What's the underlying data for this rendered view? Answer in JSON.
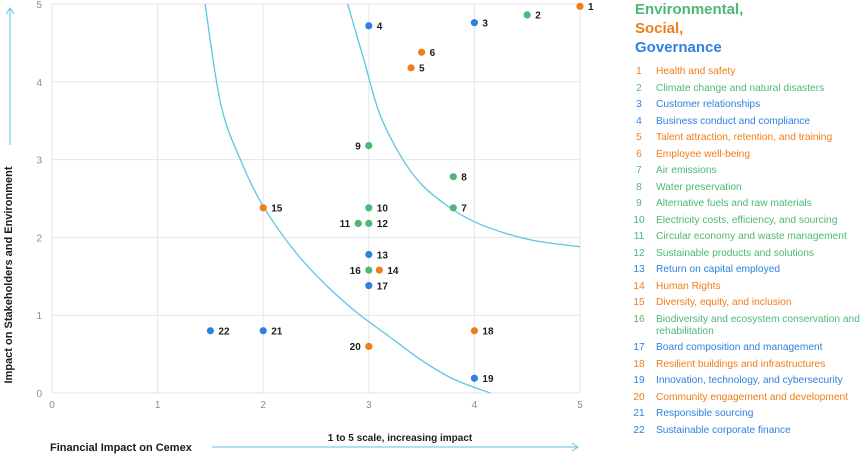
{
  "colors": {
    "environmental": "#4cb877",
    "social": "#f07d19",
    "governance": "#2f80e0",
    "curve": "#5cc6e6",
    "grid": "#e4e6e8",
    "axis": "#5cc6e6"
  },
  "legend": {
    "categories": [
      {
        "label": "Environmental,",
        "pillar": "environmental"
      },
      {
        "label": "Social,",
        "pillar": "social"
      },
      {
        "label": "Governance",
        "pillar": "governance"
      }
    ],
    "items": [
      {
        "num": "1",
        "label": "Health and safety",
        "pillar": "social"
      },
      {
        "num": "2",
        "label": "Climate change and natural disasters",
        "pillar": "environmental"
      },
      {
        "num": "3",
        "label": "Customer relationships",
        "pillar": "governance"
      },
      {
        "num": "4",
        "label": "Business conduct and compliance",
        "pillar": "governance"
      },
      {
        "num": "5",
        "label": "Talent attraction, retention, and training",
        "pillar": "social"
      },
      {
        "num": "6",
        "label": "Employee well-being",
        "pillar": "social"
      },
      {
        "num": "7",
        "label": "Air emissions",
        "pillar": "environmental"
      },
      {
        "num": "8",
        "label": "Water preservation",
        "pillar": "environmental"
      },
      {
        "num": "9",
        "label": "Alternative fuels and raw materials",
        "pillar": "environmental"
      },
      {
        "num": "10",
        "label": "Electricity costs, efficiency, and sourcing",
        "pillar": "environmental"
      },
      {
        "num": "11",
        "label": "Circular economy and waste management",
        "pillar": "environmental"
      },
      {
        "num": "12",
        "label": "Sustainable products and solutions",
        "pillar": "environmental"
      },
      {
        "num": "13",
        "label": "Return on capital employed",
        "pillar": "governance"
      },
      {
        "num": "14",
        "label": "Human Rights",
        "pillar": "social"
      },
      {
        "num": "15",
        "label": "Diversity, equity, and inclusion",
        "pillar": "social"
      },
      {
        "num": "16",
        "label": "Biodiversity and ecosystem conservation and rehabilitation",
        "pillar": "environmental"
      },
      {
        "num": "17",
        "label": "Board composition and management",
        "pillar": "governance"
      },
      {
        "num": "18",
        "label": "Resilient buildings and infrastructures",
        "pillar": "social"
      },
      {
        "num": "19",
        "label": "Innovation, technology, and cybersecurity",
        "pillar": "governance"
      },
      {
        "num": "20",
        "label": "Community engagement and development",
        "pillar": "social"
      },
      {
        "num": "21",
        "label": "Responsible sourcing",
        "pillar": "governance"
      },
      {
        "num": "22",
        "label": "Sustainable corporate finance",
        "pillar": "governance"
      }
    ]
  },
  "chart_data": {
    "type": "scatter",
    "title": "",
    "xlabel": "Financial Impact on Cemex",
    "ylabel": "Impact on Stakeholders and Environment",
    "scale_note": "1 to 5 scale, increasing impact",
    "xlim": [
      0,
      5
    ],
    "ylim": [
      0,
      5
    ],
    "xticks": [
      "0",
      "1",
      "2",
      "3",
      "4",
      "5"
    ],
    "yticks": [
      "0",
      "1",
      "2",
      "3",
      "4",
      "5"
    ],
    "grid": true,
    "points": [
      {
        "id": "1",
        "x": 5.0,
        "y": 4.97,
        "pillar": "social"
      },
      {
        "id": "2",
        "x": 4.5,
        "y": 4.86,
        "pillar": "environmental"
      },
      {
        "id": "3",
        "x": 4.0,
        "y": 4.76,
        "pillar": "governance"
      },
      {
        "id": "4",
        "x": 3.0,
        "y": 4.72,
        "pillar": "governance"
      },
      {
        "id": "5",
        "x": 3.4,
        "y": 4.18,
        "pillar": "social"
      },
      {
        "id": "6",
        "x": 3.5,
        "y": 4.38,
        "pillar": "social"
      },
      {
        "id": "7",
        "x": 3.8,
        "y": 2.38,
        "pillar": "environmental"
      },
      {
        "id": "8",
        "x": 3.8,
        "y": 2.78,
        "pillar": "environmental"
      },
      {
        "id": "9",
        "x": 3.0,
        "y": 3.18,
        "pillar": "environmental"
      },
      {
        "id": "10",
        "x": 3.0,
        "y": 2.38,
        "pillar": "environmental"
      },
      {
        "id": "11",
        "x": 2.9,
        "y": 2.18,
        "pillar": "environmental"
      },
      {
        "id": "12",
        "x": 3.0,
        "y": 2.18,
        "pillar": "environmental"
      },
      {
        "id": "13",
        "x": 3.0,
        "y": 1.78,
        "pillar": "governance"
      },
      {
        "id": "14",
        "x": 3.1,
        "y": 1.58,
        "pillar": "social"
      },
      {
        "id": "15",
        "x": 2.0,
        "y": 2.38,
        "pillar": "social"
      },
      {
        "id": "16",
        "x": 3.0,
        "y": 1.58,
        "pillar": "environmental"
      },
      {
        "id": "17",
        "x": 3.0,
        "y": 1.38,
        "pillar": "governance"
      },
      {
        "id": "18",
        "x": 4.0,
        "y": 0.8,
        "pillar": "social"
      },
      {
        "id": "19",
        "x": 4.0,
        "y": 0.19,
        "pillar": "governance"
      },
      {
        "id": "20",
        "x": 3.0,
        "y": 0.6,
        "pillar": "social"
      },
      {
        "id": "21",
        "x": 2.0,
        "y": 0.8,
        "pillar": "governance"
      },
      {
        "id": "22",
        "x": 1.5,
        "y": 0.8,
        "pillar": "governance"
      }
    ],
    "threshold_curves": [
      {
        "name": "inner",
        "points": [
          [
            1.45,
            5.0
          ],
          [
            1.6,
            3.7
          ],
          [
            1.8,
            2.95
          ],
          [
            2.0,
            2.4
          ],
          [
            2.3,
            1.82
          ],
          [
            2.6,
            1.38
          ],
          [
            2.9,
            1.02
          ],
          [
            3.2,
            0.72
          ],
          [
            3.5,
            0.42
          ],
          [
            3.8,
            0.18
          ],
          [
            4.15,
            0.0
          ]
        ]
      },
      {
        "name": "outer",
        "points": [
          [
            2.8,
            5.0
          ],
          [
            2.95,
            4.3
          ],
          [
            3.1,
            3.6
          ],
          [
            3.3,
            3.05
          ],
          [
            3.5,
            2.68
          ],
          [
            3.75,
            2.4
          ],
          [
            4.0,
            2.2
          ],
          [
            4.3,
            2.05
          ],
          [
            4.6,
            1.95
          ],
          [
            5.0,
            1.88
          ]
        ]
      }
    ]
  }
}
